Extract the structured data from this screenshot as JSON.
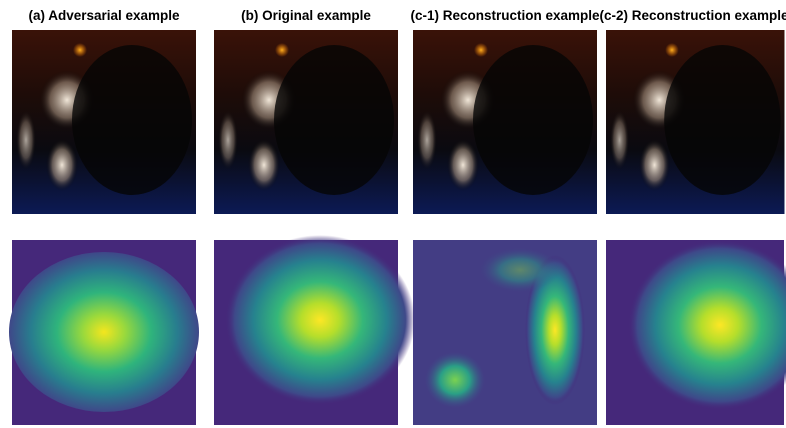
{
  "panels": [
    {
      "title": "(a) Adversarial example"
    },
    {
      "title": "(b) Original example"
    },
    {
      "title": "(c-1) Reconstruction example"
    },
    {
      "title": "(c-2) Reconstruction example"
    }
  ]
}
